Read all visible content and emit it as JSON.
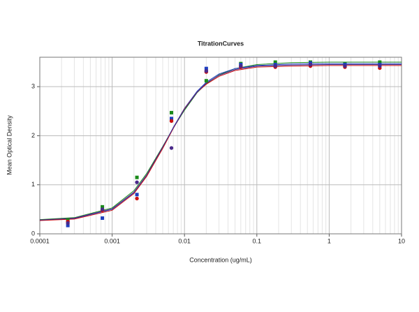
{
  "chart_data": {
    "type": "scatter",
    "title": "TitrationCurves",
    "x_label": "Concentration (ug/mL)",
    "y_label": "Mean Optical Density",
    "x_scale": "log",
    "xlim": [
      0.0001,
      10
    ],
    "xticks": [
      0.0001,
      0.001,
      0.01,
      0.1,
      1,
      10
    ],
    "ylim": [
      0,
      3.6
    ],
    "yticks": [
      0,
      1,
      2,
      3
    ],
    "grid": true,
    "minor_grid": true,
    "x": [
      0.000244,
      0.000732,
      0.0022,
      0.0066,
      0.02,
      0.06,
      0.18,
      0.55,
      1.65,
      5
    ],
    "fit_x": [
      0.0001,
      0.0003,
      0.001,
      0.002,
      0.003,
      0.005,
      0.007,
      0.01,
      0.015,
      0.02,
      0.03,
      0.05,
      0.1,
      0.3,
      1,
      10
    ],
    "series": [
      {
        "color": "#1a8a1a",
        "marker": "square",
        "values": [
          0.28,
          0.55,
          1.15,
          2.47,
          3.12,
          3.47,
          3.5,
          3.5,
          3.47,
          3.5
        ],
        "fit": [
          0.29,
          0.33,
          0.53,
          0.88,
          1.23,
          1.78,
          2.16,
          2.52,
          2.88,
          3.06,
          3.24,
          3.37,
          3.45,
          3.49,
          3.5,
          3.5
        ]
      },
      {
        "color": "#1f3fbf",
        "marker": "square",
        "values": [
          0.17,
          0.32,
          0.8,
          2.35,
          3.37,
          3.45,
          3.45,
          3.48,
          3.45,
          3.45
        ],
        "fit": [
          0.28,
          0.31,
          0.5,
          0.84,
          1.19,
          1.76,
          2.17,
          2.56,
          2.91,
          3.09,
          3.26,
          3.37,
          3.43,
          3.46,
          3.47,
          3.47
        ]
      },
      {
        "color": "#cc1111",
        "marker": "circle",
        "values": [
          0.25,
          0.48,
          0.72,
          2.3,
          3.3,
          3.4,
          3.4,
          3.42,
          3.4,
          3.38
        ],
        "fit": [
          0.27,
          0.3,
          0.48,
          0.82,
          1.17,
          1.74,
          2.15,
          2.55,
          2.89,
          3.05,
          3.21,
          3.33,
          3.4,
          3.42,
          3.43,
          3.43
        ]
      },
      {
        "color": "#4a2a8a",
        "marker": "circle",
        "values": [
          0.22,
          0.5,
          1.05,
          1.75,
          3.32,
          3.42,
          3.42,
          3.45,
          3.42,
          3.42
        ],
        "fit": [
          0.28,
          0.32,
          0.51,
          0.85,
          1.2,
          1.77,
          2.16,
          2.54,
          2.89,
          3.07,
          3.23,
          3.35,
          3.42,
          3.44,
          3.45,
          3.45
        ]
      }
    ]
  }
}
